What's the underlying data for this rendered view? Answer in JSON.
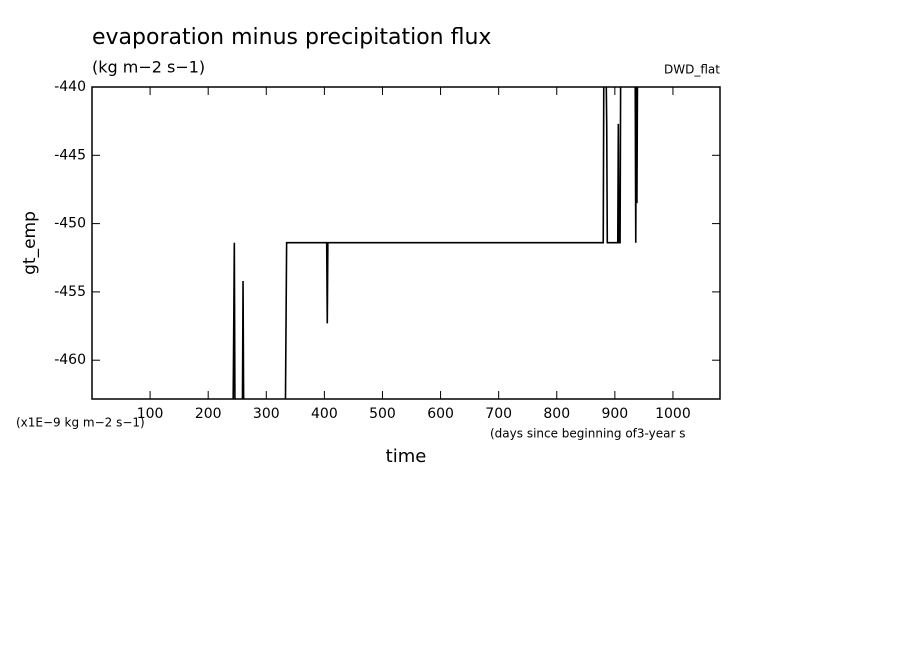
{
  "chart_data": {
    "type": "line",
    "title": "evaporation minus precipitation flux",
    "subtitle": "(kg m−2 s−1)",
    "dataset_label": "DWD_flat",
    "y_label": "gt_emp",
    "x_label": "time",
    "y_units_note": "(x1E−9 kg m−2 s−1)",
    "x_units_note": "(days since beginning of3-year s",
    "xlim": [
      0,
      1081
    ],
    "ylim": [
      -462.84,
      -440
    ],
    "xticks": [
      100,
      200,
      300,
      400,
      500,
      600,
      700,
      800,
      900,
      1000
    ],
    "yticks": [
      -440,
      -445,
      -450,
      -455,
      -460
    ],
    "series": [
      {
        "color": "#000000",
        "x": [
          0,
          243,
          244,
          245,
          246,
          259,
          260,
          261,
          333,
          334,
          335,
          404,
          405,
          406,
          880,
          881,
          885,
          886,
          887,
          905,
          906,
          907,
          909,
          910,
          935,
          936,
          937,
          938,
          939
        ],
        "values": [
          -463,
          -463,
          -457.3,
          -451.4,
          -463,
          -463,
          -454.2,
          -463,
          -463,
          -457.3,
          -451.4,
          -451.4,
          -457.3,
          -451.4,
          -451.4,
          -439,
          -439,
          -442.7,
          -451.4,
          -451.4,
          -442.7,
          -451.4,
          -451.4,
          -439,
          -439,
          -451.4,
          -439,
          -448.5,
          -439
        ]
      }
    ]
  }
}
